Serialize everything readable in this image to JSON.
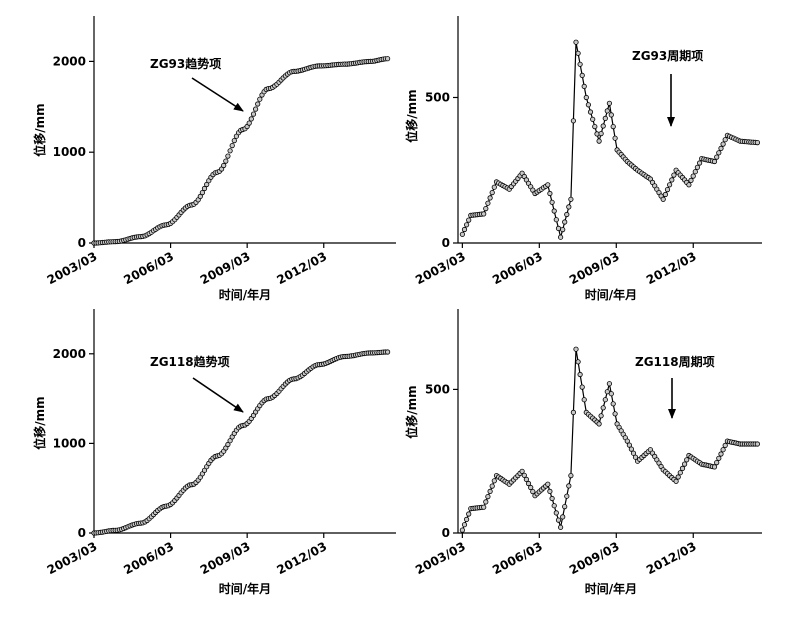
{
  "chart_data": [
    {
      "type": "scatter",
      "title": "",
      "annotation": "ZG93趋势项",
      "xlabel": "时间/年月",
      "ylabel": "位移/mm",
      "xlim": [
        2003.17,
        2015.0
      ],
      "ylim": [
        0,
        2500
      ],
      "xticks": [
        "2003/03",
        "2006/03",
        "2009/03",
        "2012/03"
      ],
      "yticks": [
        0,
        1000,
        2000
      ],
      "grid": false,
      "series": [
        {
          "x": [
            2003.17,
            2004.0,
            2005.0,
            2006.0,
            2007.0,
            2008.0,
            2009.0,
            2010.0,
            2011.0,
            2012.0,
            2013.0,
            2014.0,
            2014.67
          ],
          "y": [
            0,
            15,
            70,
            200,
            420,
            780,
            1250,
            1700,
            1890,
            1950,
            1970,
            2000,
            2030
          ]
        }
      ]
    },
    {
      "type": "line",
      "title": "",
      "annotation": "ZG93周期项",
      "xlabel": "时间/年月",
      "ylabel": "位移/mm",
      "xlim": [
        2003.0,
        2014.85
      ],
      "ylim": [
        0,
        780
      ],
      "xticks": [
        "2003/03",
        "2006/03",
        "2009/03",
        "2012/03"
      ],
      "yticks": [
        0,
        500
      ],
      "grid": false,
      "series": [
        {
          "x": [
            2003.17,
            2003.5,
            2004.0,
            2004.5,
            2005.0,
            2005.5,
            2006.0,
            2006.5,
            2007.0,
            2007.4,
            2007.6,
            2008.0,
            2008.5,
            2008.9,
            2009.2,
            2009.6,
            2010.0,
            2010.5,
            2011.0,
            2011.5,
            2012.0,
            2012.5,
            2013.0,
            2013.5,
            2014.0,
            2014.67
          ],
          "y": [
            30,
            95,
            100,
            210,
            185,
            240,
            170,
            200,
            20,
            150,
            690,
            500,
            350,
            480,
            320,
            280,
            250,
            220,
            150,
            250,
            200,
            290,
            280,
            370,
            350,
            345
          ]
        }
      ]
    },
    {
      "type": "scatter",
      "title": "",
      "annotation": "ZG118趋势项",
      "xlabel": "时间/年月",
      "ylabel": "位移/mm",
      "xlim": [
        2003.17,
        2015.0
      ],
      "ylim": [
        0,
        2500
      ],
      "xticks": [
        "2003/03",
        "2006/03",
        "2009/03",
        "2012/03"
      ],
      "yticks": [
        0,
        1000,
        2000
      ],
      "grid": false,
      "series": [
        {
          "x": [
            2003.17,
            2004.0,
            2005.0,
            2006.0,
            2007.0,
            2008.0,
            2009.0,
            2010.0,
            2011.0,
            2012.0,
            2013.0,
            2014.0,
            2014.67
          ],
          "y": [
            0,
            30,
            110,
            300,
            540,
            860,
            1200,
            1500,
            1720,
            1880,
            1970,
            2010,
            2020
          ]
        }
      ]
    },
    {
      "type": "line",
      "title": "",
      "annotation": "ZG118周期项",
      "xlabel": "时间/年月",
      "ylabel": "位移/mm",
      "xlim": [
        2003.0,
        2014.85
      ],
      "ylim": [
        0,
        780
      ],
      "xticks": [
        "2003/03",
        "2006/03",
        "2009/03",
        "2012/03"
      ],
      "yticks": [
        0,
        500
      ],
      "grid": false,
      "series": [
        {
          "x": [
            2003.17,
            2003.5,
            2004.0,
            2004.5,
            2005.0,
            2005.5,
            2006.0,
            2006.5,
            2007.0,
            2007.4,
            2007.6,
            2008.0,
            2008.5,
            2008.9,
            2009.2,
            2009.6,
            2010.0,
            2010.5,
            2011.0,
            2011.5,
            2012.0,
            2012.5,
            2013.0,
            2013.5,
            2014.0,
            2014.67
          ],
          "y": [
            10,
            85,
            90,
            200,
            170,
            215,
            130,
            170,
            20,
            200,
            640,
            420,
            380,
            520,
            380,
            320,
            250,
            290,
            220,
            180,
            270,
            240,
            230,
            320,
            310,
            310
          ]
        }
      ]
    }
  ]
}
